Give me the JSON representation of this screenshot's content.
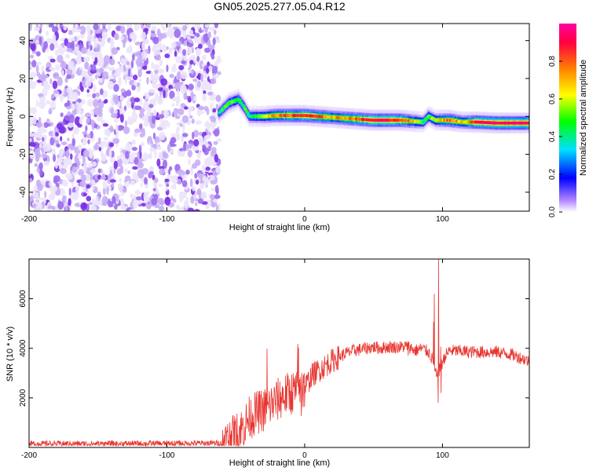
{
  "title": "GN05.2025.277.05.04.R12",
  "chart_data": [
    {
      "type": "heatmap",
      "title": "GN05.2025.277.05.04.R12",
      "xlabel": "Height of straight line (km)",
      "ylabel": "Frequency (Hz)",
      "xlim": [
        -200,
        163
      ],
      "ylim": [
        -50,
        49
      ],
      "xticks": [
        -200,
        -100,
        0,
        100
      ],
      "xtick_labels": [
        "-200",
        "-100",
        "0",
        "100"
      ],
      "yticks": [
        -40,
        -20,
        0,
        20,
        40
      ],
      "ytick_labels": [
        "-40",
        "-20",
        "0",
        "20",
        "40"
      ],
      "noise_region_km": [
        -200,
        -62
      ],
      "ridge": [
        {
          "x": -62,
          "y": 2,
          "amp": 0.45
        },
        {
          "x": -55,
          "y": 7,
          "amp": 0.55
        },
        {
          "x": -48,
          "y": 9,
          "amp": 0.5
        },
        {
          "x": -44,
          "y": 5,
          "amp": 0.5
        },
        {
          "x": -40,
          "y": 0,
          "amp": 0.45
        },
        {
          "x": -30,
          "y": 0,
          "amp": 0.6
        },
        {
          "x": -20,
          "y": 0.5,
          "amp": 0.75
        },
        {
          "x": -10,
          "y": 0.5,
          "amp": 0.8
        },
        {
          "x": 0,
          "y": 0.5,
          "amp": 0.85
        },
        {
          "x": 10,
          "y": 0,
          "amp": 0.8
        },
        {
          "x": 20,
          "y": -0.5,
          "amp": 0.7
        },
        {
          "x": 30,
          "y": -1,
          "amp": 0.75
        },
        {
          "x": 40,
          "y": -1.5,
          "amp": 0.8
        },
        {
          "x": 50,
          "y": -2,
          "amp": 0.9
        },
        {
          "x": 60,
          "y": -2,
          "amp": 0.9
        },
        {
          "x": 70,
          "y": -2,
          "amp": 0.85
        },
        {
          "x": 78,
          "y": -2.5,
          "amp": 0.7
        },
        {
          "x": 86,
          "y": -3,
          "amp": 0.5
        },
        {
          "x": 90,
          "y": 0,
          "amp": 0.55
        },
        {
          "x": 95,
          "y": -2,
          "amp": 0.6
        },
        {
          "x": 105,
          "y": -2,
          "amp": 0.8
        },
        {
          "x": 115,
          "y": -3,
          "amp": 0.65
        },
        {
          "x": 125,
          "y": -3,
          "amp": 0.9
        },
        {
          "x": 140,
          "y": -3.5,
          "amp": 0.95
        },
        {
          "x": 155,
          "y": -3.5,
          "amp": 0.95
        },
        {
          "x": 163,
          "y": -3.5,
          "amp": 0.9
        }
      ],
      "colorbar": {
        "label": "Normalized spectral amplitude",
        "range": [
          0,
          1
        ],
        "ticks": [
          0.0,
          0.2,
          0.4,
          0.6,
          0.8
        ],
        "tick_labels": [
          "0.0",
          "0.2",
          "0.4",
          "0.6",
          "0.8"
        ],
        "colors": [
          "#ffffff",
          "#b488ff",
          "#0000ff",
          "#00e0ff",
          "#00ff00",
          "#ffff00",
          "#ff8000",
          "#ff0040",
          "#ff00a0"
        ]
      }
    },
    {
      "type": "line",
      "xlabel": "Height of straight line (km)",
      "ylabel": "SNR (10 * v/v)",
      "xlim": [
        -200,
        163
      ],
      "ylim": [
        0,
        7600
      ],
      "xticks": [
        -200,
        -100,
        0,
        100
      ],
      "xtick_labels": [
        "-200",
        "-100",
        "0",
        "100"
      ],
      "yticks": [
        2000,
        4000,
        6000
      ],
      "ytick_labels": [
        "2000",
        "4000",
        "6000"
      ],
      "color": "#e8342f",
      "series": [
        {
          "name": "SNR",
          "x": [
            -200,
            -150,
            -100,
            -70,
            -60,
            -55,
            -50,
            -45,
            -40,
            -35,
            -30,
            -25,
            -20,
            -15,
            -10,
            -5,
            0,
            5,
            10,
            15,
            20,
            25,
            30,
            35,
            40,
            45,
            50,
            55,
            60,
            65,
            70,
            75,
            80,
            85,
            90,
            93,
            96,
            99,
            102,
            105,
            110,
            120,
            130,
            140,
            150,
            160,
            163
          ],
          "y": [
            150,
            150,
            160,
            170,
            180,
            300,
            500,
            800,
            1200,
            1400,
            1500,
            1700,
            1900,
            2100,
            2200,
            2300,
            2400,
            2900,
            3100,
            3300,
            3500,
            3650,
            3800,
            3900,
            3950,
            4000,
            4050,
            4000,
            4050,
            4050,
            4050,
            4100,
            3900,
            4000,
            3850,
            3500,
            2800,
            3300,
            3700,
            3900,
            3900,
            3850,
            3850,
            3850,
            3750,
            3550,
            3450
          ]
        }
      ],
      "spikes": [
        {
          "x": -27,
          "y": 5250,
          "low": 1700
        },
        {
          "x": -5,
          "y": 4180,
          "low": 2300
        },
        {
          "x": -2,
          "y": 3000,
          "low": 380
        },
        {
          "x": 94,
          "y": 6200,
          "low": 3300
        },
        {
          "x": 97,
          "y": 7600,
          "low": 1800
        },
        {
          "x": 99,
          "y": 5500,
          "low": 2200
        },
        {
          "x": 75,
          "y": 4350,
          "low": 3700
        }
      ]
    }
  ]
}
